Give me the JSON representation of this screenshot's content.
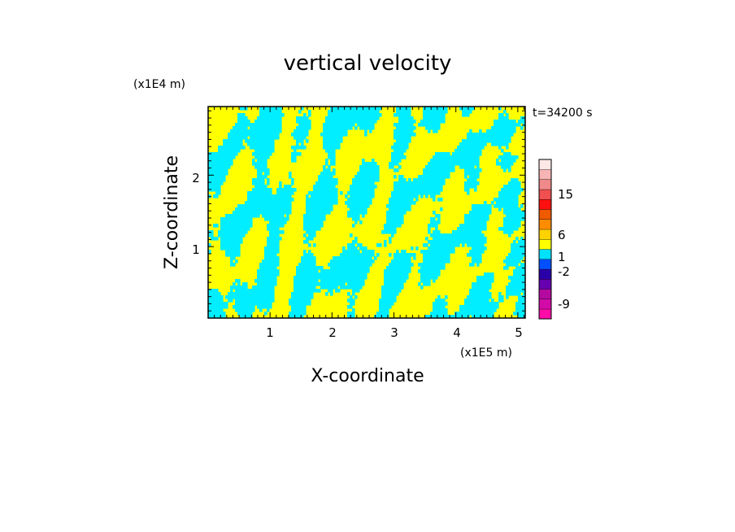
{
  "chart_data": {
    "type": "heatmap",
    "title": "vertical velocity",
    "time_label": "t=34200 s",
    "xlabel": "X-coordinate",
    "ylabel": "Z-coordinate",
    "x_unit": "(x1E5 m)",
    "y_unit": "(x1E4 m)",
    "xlim": [
      0,
      5.12
    ],
    "ylim": [
      0,
      2.96
    ],
    "x_ticks": [
      "1",
      "2",
      "3",
      "4",
      "5"
    ],
    "y_ticks": [
      "1",
      "2"
    ],
    "field_colors": {
      "positive": "#ffff00",
      "negative": "#00eeff"
    },
    "colorbar": {
      "tick_labels": [
        "15",
        "6",
        "1",
        "-2",
        "-9"
      ],
      "colors": [
        "#ff0ba8",
        "#d20ba8",
        "#b40aa0",
        "#6600b0",
        "#2a00a8",
        "#0050ff",
        "#00e0ff",
        "#ffff00",
        "#ffd200",
        "#ff8c00",
        "#f05a00",
        "#ff1010",
        "#f05050",
        "#f08a8a",
        "#f8b4b4",
        "#fde6e6"
      ]
    }
  }
}
